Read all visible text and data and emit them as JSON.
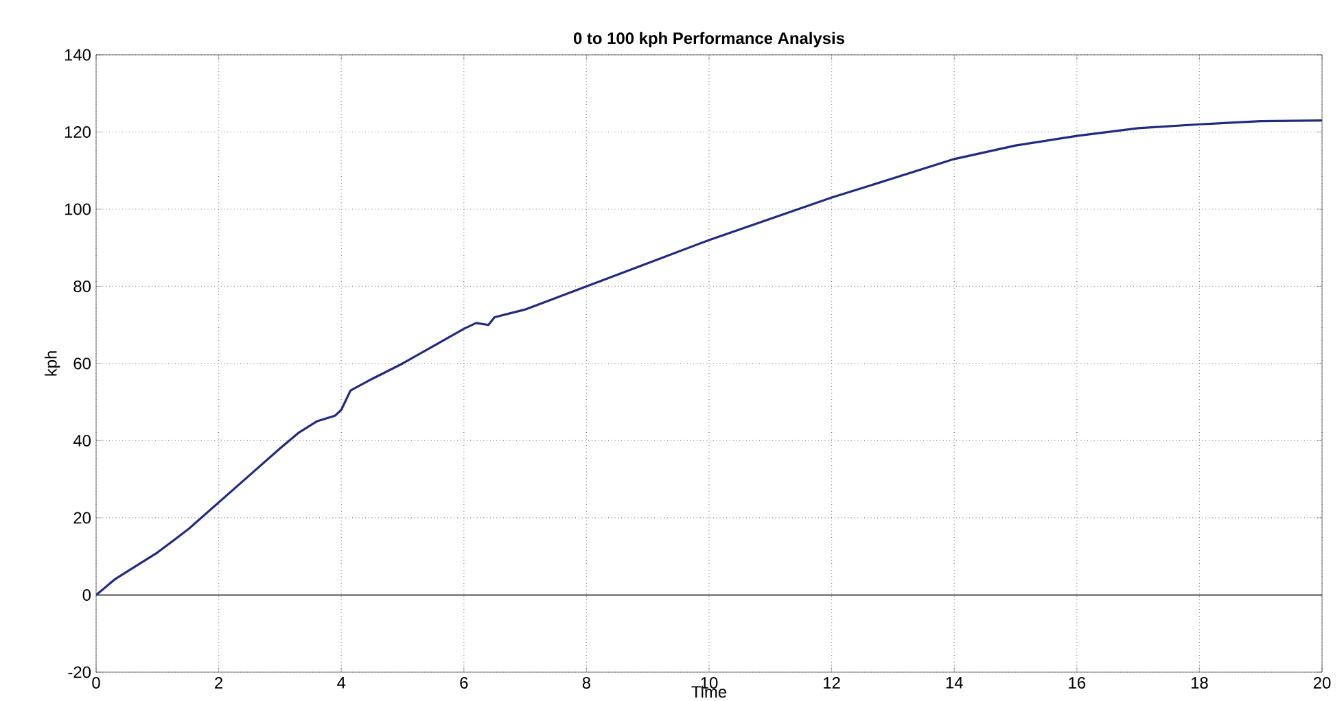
{
  "chart_data": {
    "type": "line",
    "title": "0 to 100 kph Performance Analysis",
    "xlabel": "Time",
    "ylabel": "kph",
    "x": [
      0,
      0.3,
      0.5,
      1,
      1.5,
      2,
      2.5,
      3,
      3.3,
      3.6,
      3.9,
      4.0,
      4.15,
      4.5,
      5,
      5.5,
      6,
      6.2,
      6.4,
      6.5,
      7,
      8,
      9,
      10,
      11,
      12,
      13,
      14,
      15,
      16,
      17,
      18,
      19,
      20
    ],
    "series": [
      {
        "color": "#1f2a80",
        "values": [
          0,
          4,
          6,
          11,
          17,
          24,
          31,
          38,
          42,
          45,
          46.5,
          48,
          53,
          56,
          60,
          64.5,
          69,
          70.5,
          70,
          72,
          74,
          80,
          86,
          92,
          97.5,
          103,
          108,
          113,
          116.5,
          119,
          121,
          122,
          122.8,
          123
        ]
      }
    ],
    "xlim": [
      0,
      20
    ],
    "ylim": [
      -20,
      140
    ],
    "xticks": [
      0,
      2,
      4,
      6,
      8,
      10,
      12,
      14,
      16,
      18,
      20
    ],
    "yticks": [
      -20,
      0,
      20,
      40,
      60,
      80,
      100,
      120,
      140
    ],
    "ref_lines": [
      {
        "axis": "y",
        "value": 0,
        "color": "#000000"
      }
    ],
    "grid": true,
    "marker": "none",
    "line_style": "solid"
  }
}
